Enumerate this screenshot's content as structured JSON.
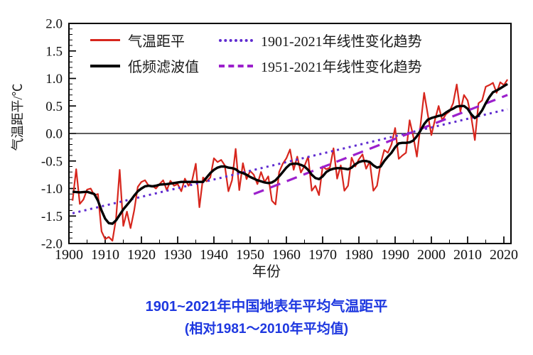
{
  "chart_data": {
    "type": "line",
    "title": "1901~2021年中国地表年平均气温距平",
    "subtitle": "(相对1981～2010年平均值)",
    "xlabel": "年份",
    "ylabel": "气温距平/℃",
    "xlim": [
      1900,
      2022
    ],
    "ylim": [
      -2.0,
      2.0
    ],
    "grid": false,
    "legend_position": "top-left-inside",
    "x_ticks": [
      1900,
      1910,
      1920,
      1930,
      1940,
      1950,
      1960,
      1970,
      1980,
      1990,
      2000,
      2010,
      2020
    ],
    "y_tick_labels": [
      "2.0",
      "1.5",
      "1.0",
      "0.5",
      "0.0",
      "-0.5",
      "-1.0",
      "-1.5",
      "-2.0"
    ],
    "y_ticks": [
      2.0,
      1.5,
      1.0,
      0.5,
      0.0,
      -0.5,
      -1.0,
      -1.5,
      -2.0
    ],
    "zero_line": 0.0,
    "colors": {
      "annual": "#d7261d",
      "filtered": "#000000",
      "trend_1901": "#5f2bd0",
      "trend_1951": "#9c20cc",
      "caption": "#1e38e0"
    },
    "series": [
      {
        "name": "气温距平",
        "style": "solid",
        "color": "#d7261d",
        "width": 2.2,
        "start_year": 1901,
        "values": [
          -1.22,
          -0.65,
          -1.28,
          -1.2,
          -1.02,
          -1.0,
          -1.12,
          -1.1,
          -1.78,
          -1.92,
          -1.88,
          -1.95,
          -1.55,
          -0.66,
          -1.68,
          -1.42,
          -1.72,
          -1.4,
          -0.97,
          -0.88,
          -0.85,
          -0.95,
          -0.95,
          -1.0,
          -0.92,
          -0.85,
          -1.03,
          -0.86,
          -0.95,
          -0.92,
          -1.05,
          -0.82,
          -0.95,
          -0.85,
          -0.55,
          -1.34,
          -0.8,
          -0.87,
          -0.8,
          -0.45,
          -0.52,
          -0.48,
          -0.58,
          -1.05,
          -0.85,
          -0.28,
          -1.03,
          -0.54,
          -0.83,
          -0.68,
          -0.75,
          -0.92,
          -0.7,
          -0.88,
          -0.78,
          -1.22,
          -1.29,
          -0.7,
          -0.55,
          -0.45,
          -0.29,
          -0.66,
          -0.42,
          -0.71,
          -0.59,
          -0.42,
          -1.04,
          -0.95,
          -1.12,
          -0.6,
          -0.65,
          -0.62,
          -0.27,
          -0.82,
          -0.58,
          -1.04,
          -0.95,
          -0.44,
          -0.6,
          -0.47,
          -0.38,
          -0.64,
          -0.51,
          -1.04,
          -0.95,
          -0.55,
          -0.3,
          -0.35,
          -0.2,
          0.1,
          -0.46,
          -0.4,
          -0.35,
          0.24,
          -0.05,
          -0.42,
          0.15,
          0.74,
          0.35,
          -0.03,
          0.25,
          0.5,
          0.24,
          0.35,
          0.4,
          0.55,
          0.89,
          0.4,
          0.7,
          0.6,
          0.3,
          -0.12,
          0.55,
          0.6,
          0.85,
          0.88,
          0.92,
          0.74,
          0.93,
          0.88,
          0.98
        ]
      },
      {
        "name": "低频滤波值",
        "style": "solid",
        "color": "#000000",
        "width": 3.4,
        "points": [
          [
            1901,
            -1.06
          ],
          [
            1903,
            -1.07
          ],
          [
            1905,
            -1.06
          ],
          [
            1907,
            -1.1
          ],
          [
            1908,
            -1.22
          ],
          [
            1909,
            -1.4
          ],
          [
            1910,
            -1.55
          ],
          [
            1911,
            -1.63
          ],
          [
            1912,
            -1.64
          ],
          [
            1913,
            -1.58
          ],
          [
            1914,
            -1.48
          ],
          [
            1915,
            -1.38
          ],
          [
            1916,
            -1.3
          ],
          [
            1917,
            -1.22
          ],
          [
            1918,
            -1.13
          ],
          [
            1919,
            -1.05
          ],
          [
            1920,
            -1.0
          ],
          [
            1921,
            -0.96
          ],
          [
            1922,
            -0.95
          ],
          [
            1923,
            -0.96
          ],
          [
            1924,
            -0.95
          ],
          [
            1925,
            -0.93
          ],
          [
            1927,
            -0.92
          ],
          [
            1929,
            -0.9
          ],
          [
            1931,
            -0.88
          ],
          [
            1933,
            -0.88
          ],
          [
            1935,
            -0.88
          ],
          [
            1937,
            -0.88
          ],
          [
            1938,
            -0.8
          ],
          [
            1939,
            -0.72
          ],
          [
            1940,
            -0.66
          ],
          [
            1941,
            -0.62
          ],
          [
            1942,
            -0.6
          ],
          [
            1943,
            -0.6
          ],
          [
            1944,
            -0.62
          ],
          [
            1945,
            -0.63
          ],
          [
            1946,
            -0.65
          ],
          [
            1947,
            -0.7
          ],
          [
            1948,
            -0.72
          ],
          [
            1949,
            -0.75
          ],
          [
            1950,
            -0.79
          ],
          [
            1951,
            -0.82
          ],
          [
            1952,
            -0.85
          ],
          [
            1953,
            -0.87
          ],
          [
            1954,
            -0.89
          ],
          [
            1955,
            -0.9
          ],
          [
            1956,
            -0.89
          ],
          [
            1957,
            -0.85
          ],
          [
            1958,
            -0.78
          ],
          [
            1959,
            -0.7
          ],
          [
            1960,
            -0.62
          ],
          [
            1961,
            -0.56
          ],
          [
            1962,
            -0.55
          ],
          [
            1963,
            -0.55
          ],
          [
            1964,
            -0.57
          ],
          [
            1965,
            -0.6
          ],
          [
            1966,
            -0.66
          ],
          [
            1967,
            -0.75
          ],
          [
            1968,
            -0.81
          ],
          [
            1969,
            -0.83
          ],
          [
            1970,
            -0.78
          ],
          [
            1971,
            -0.7
          ],
          [
            1972,
            -0.66
          ],
          [
            1973,
            -0.64
          ],
          [
            1974,
            -0.63
          ],
          [
            1975,
            -0.63
          ],
          [
            1976,
            -0.64
          ],
          [
            1977,
            -0.65
          ],
          [
            1978,
            -0.62
          ],
          [
            1979,
            -0.56
          ],
          [
            1980,
            -0.52
          ],
          [
            1981,
            -0.5
          ],
          [
            1982,
            -0.5
          ],
          [
            1983,
            -0.52
          ],
          [
            1984,
            -0.58
          ],
          [
            1985,
            -0.62
          ],
          [
            1986,
            -0.6
          ],
          [
            1987,
            -0.5
          ],
          [
            1988,
            -0.42
          ],
          [
            1989,
            -0.35
          ],
          [
            1990,
            -0.25
          ],
          [
            1991,
            -0.18
          ],
          [
            1992,
            -0.17
          ],
          [
            1993,
            -0.17
          ],
          [
            1994,
            -0.16
          ],
          [
            1995,
            -0.13
          ],
          [
            1996,
            -0.05
          ],
          [
            1997,
            0.05
          ],
          [
            1998,
            0.17
          ],
          [
            1999,
            0.25
          ],
          [
            2000,
            0.28
          ],
          [
            2001,
            0.3
          ],
          [
            2002,
            0.32
          ],
          [
            2003,
            0.33
          ],
          [
            2004,
            0.38
          ],
          [
            2005,
            0.42
          ],
          [
            2006,
            0.45
          ],
          [
            2007,
            0.49
          ],
          [
            2008,
            0.5
          ],
          [
            2009,
            0.5
          ],
          [
            2010,
            0.45
          ],
          [
            2011,
            0.35
          ],
          [
            2012,
            0.28
          ],
          [
            2013,
            0.33
          ],
          [
            2014,
            0.42
          ],
          [
            2015,
            0.55
          ],
          [
            2016,
            0.66
          ],
          [
            2017,
            0.75
          ],
          [
            2018,
            0.78
          ],
          [
            2019,
            0.82
          ],
          [
            2020,
            0.86
          ],
          [
            2021,
            0.9
          ]
        ]
      },
      {
        "name": "1901-2021年线性变化趋势",
        "style": "dotted",
        "color": "#5f2bd0",
        "width": 3.0,
        "points": [
          [
            1901,
            -1.45
          ],
          [
            2021,
            0.44
          ]
        ]
      },
      {
        "name": "1951-2021年线性变化趋势",
        "style": "dashed",
        "color": "#9c20cc",
        "width": 3.2,
        "points": [
          [
            1951,
            -1.1
          ],
          [
            2021,
            0.7
          ]
        ]
      }
    ]
  }
}
